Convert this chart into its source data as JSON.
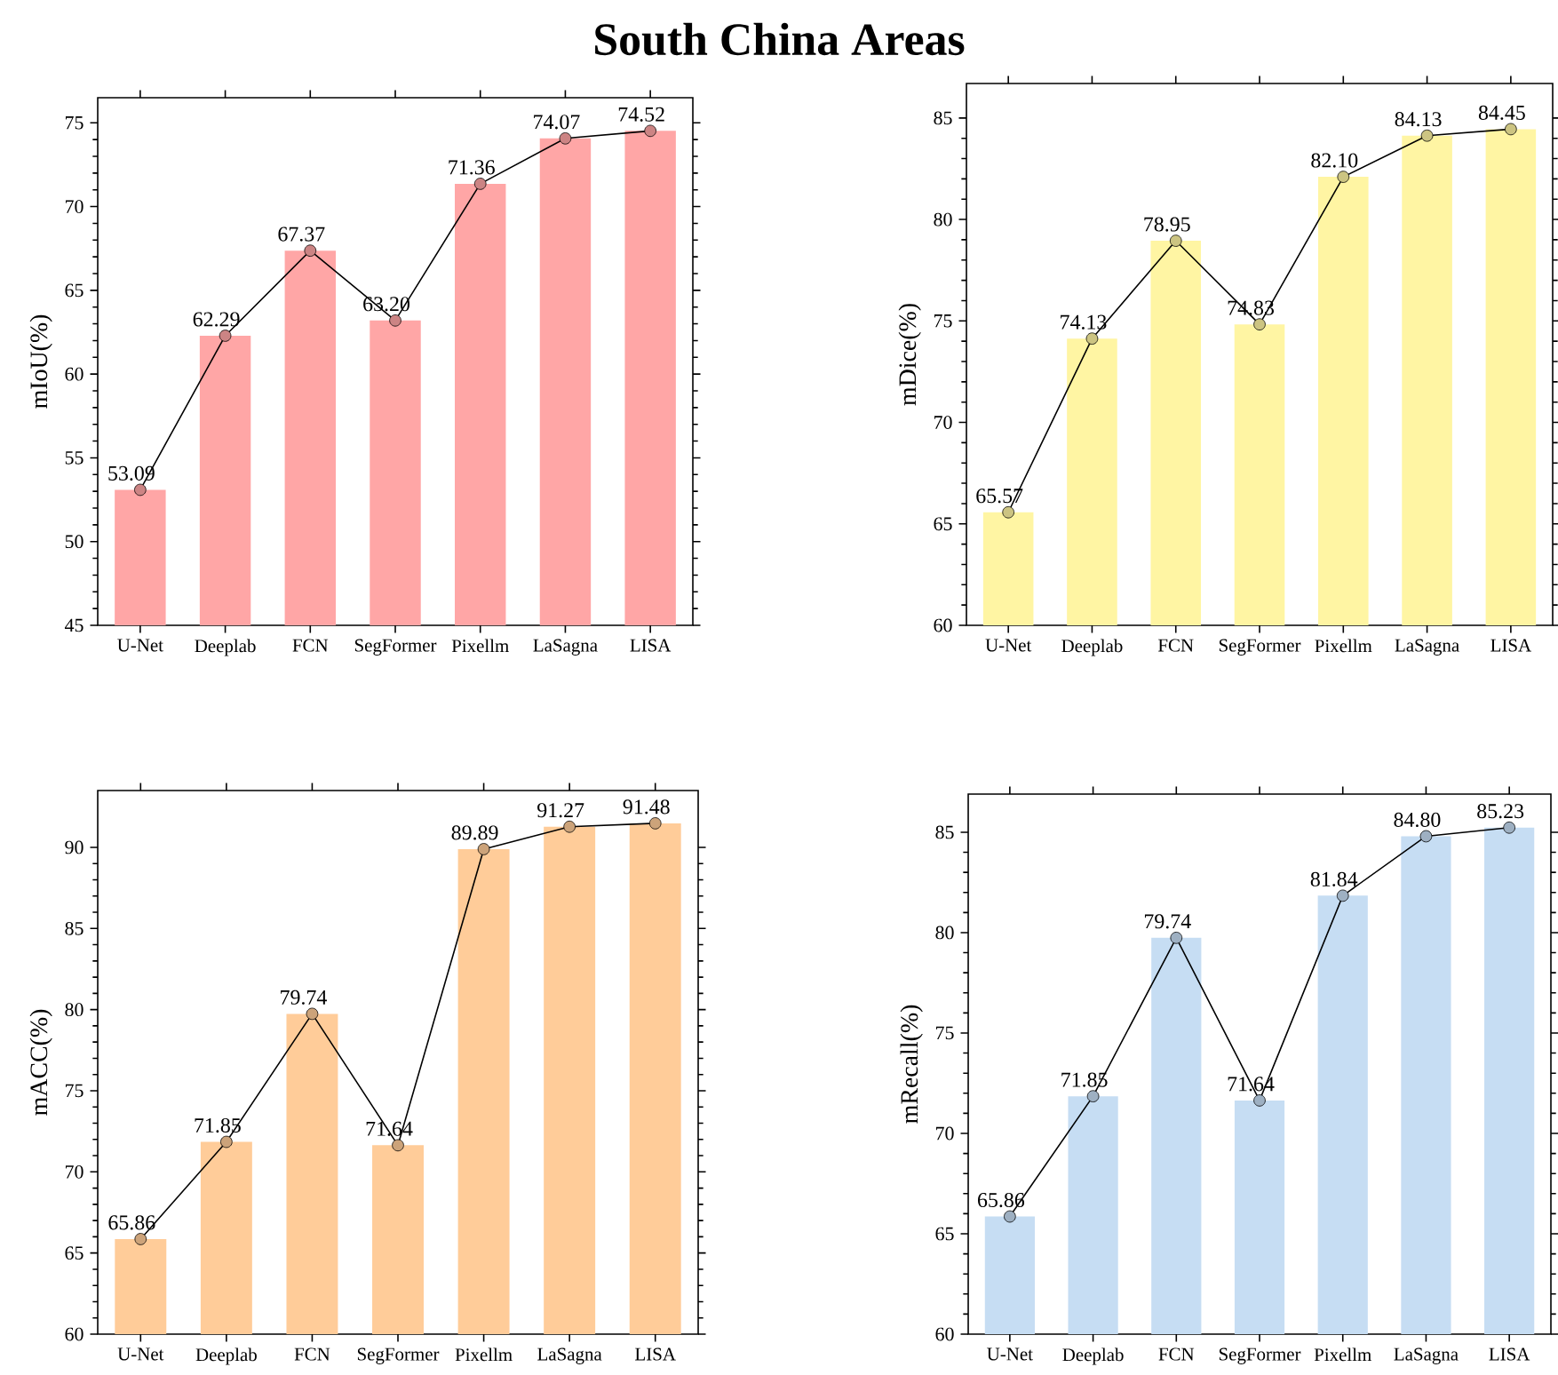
{
  "chart_data": [
    {
      "type": "bar",
      "title": "South China Areas",
      "ylabel": "mIoU(%)",
      "categories": [
        "U-Net",
        "Deeplab",
        "FCN",
        "SegFormer",
        "Pixellm",
        "LaSagna",
        "LISA"
      ],
      "ylim": [
        45,
        76.5
      ],
      "yticks": [
        45,
        50,
        55,
        60,
        65,
        70,
        75
      ],
      "marker": "circle",
      "series": [
        {
          "color": "#ffa6a6",
          "values": [
            53.09,
            62.29,
            67.37,
            63.2,
            71.36,
            74.07,
            74.52
          ]
        },
        {
          "type": "line",
          "color": "#000000",
          "values": [
            53.09,
            62.29,
            67.37,
            63.2,
            71.36,
            74.07,
            74.52
          ],
          "value_labels": [
            "53.09",
            "62.29",
            "67.37",
            "63.20",
            "71.36",
            "74.07",
            "74.52"
          ]
        }
      ]
    },
    {
      "type": "bar",
      "ylabel": "mDice(%)",
      "categories": [
        "U-Net",
        "Deeplab",
        "FCN",
        "SegFormer",
        "Pixellm",
        "LaSagna",
        "LISA"
      ],
      "ylim": [
        60,
        86.7
      ],
      "yticks": [
        60,
        65,
        70,
        75,
        80,
        85
      ],
      "marker": "circle",
      "series": [
        {
          "color": "#fff5a3",
          "values": [
            65.57,
            74.13,
            78.95,
            74.83,
            82.1,
            84.13,
            84.45
          ]
        },
        {
          "type": "line",
          "color": "#000000",
          "values": [
            65.57,
            74.13,
            78.95,
            74.83,
            82.1,
            84.13,
            84.45
          ],
          "value_labels": [
            "65.57",
            "74.13",
            "78.95",
            "74.83",
            "82.10",
            "84.13",
            "84.45"
          ]
        }
      ]
    },
    {
      "type": "bar",
      "ylabel": "mACC(%)",
      "categories": [
        "U-Net",
        "Deeplab",
        "FCN",
        "SegFormer",
        "Pixellm",
        "LaSagna",
        "LISA"
      ],
      "ylim": [
        60,
        93.5
      ],
      "yticks": [
        60,
        65,
        70,
        75,
        80,
        85,
        90
      ],
      "marker": "circle",
      "series": [
        {
          "color": "#ffcc99",
          "values": [
            65.86,
            71.85,
            79.74,
            71.64,
            89.89,
            91.27,
            91.48
          ]
        },
        {
          "type": "line",
          "color": "#000000",
          "values": [
            65.86,
            71.85,
            79.74,
            71.64,
            89.89,
            91.27,
            91.48
          ],
          "value_labels": [
            "65.86",
            "71.85",
            "79.74",
            "71.64",
            "89.89",
            "91.27",
            "91.48"
          ]
        }
      ]
    },
    {
      "type": "bar",
      "ylabel": "mRecall(%)",
      "categories": [
        "U-Net",
        "Deeplab",
        "FCN",
        "SegFormer",
        "Pixellm",
        "LaSagna",
        "LISA"
      ],
      "ylim": [
        60,
        86.9
      ],
      "yticks": [
        60,
        65,
        70,
        75,
        80,
        85
      ],
      "marker": "circle",
      "series": [
        {
          "color": "#c6ddf3",
          "values": [
            65.86,
            71.85,
            79.74,
            71.64,
            81.84,
            84.8,
            85.23
          ]
        },
        {
          "type": "line",
          "color": "#000000",
          "values": [
            65.86,
            71.85,
            79.74,
            71.64,
            81.84,
            84.8,
            85.23
          ],
          "value_labels": [
            "65.86",
            "71.85",
            "79.74",
            "71.64",
            "81.84",
            "84.80",
            "85.23"
          ]
        }
      ]
    }
  ]
}
